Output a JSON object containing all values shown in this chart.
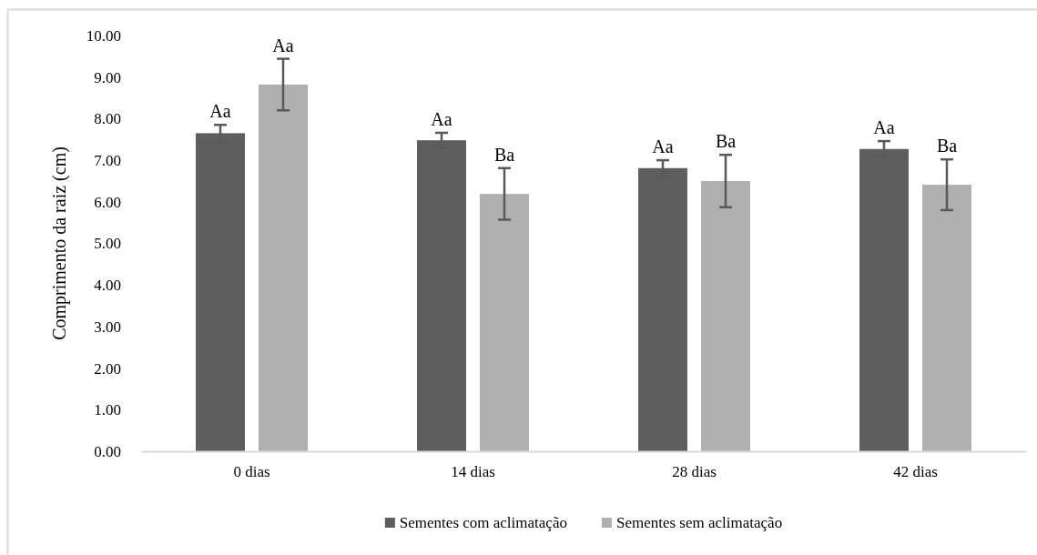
{
  "chart_data": {
    "type": "bar",
    "ylabel": "Comprimento da raiz (cm)",
    "categories": [
      "0 dias",
      "14 dias",
      "28 dias",
      "42 dias"
    ],
    "series": [
      {
        "name": "Sementes com aclimatação",
        "color": "#5e5e5e",
        "values": [
          7.65,
          7.48,
          6.81,
          7.27
        ],
        "errors": [
          0.2,
          0.18,
          0.19,
          0.19
        ],
        "value_labels": [
          "Aa",
          "Aa",
          "Aa",
          "Aa"
        ]
      },
      {
        "name": "Sementes sem aclimatação",
        "color": "#b0b0b0",
        "values": [
          8.82,
          6.19,
          6.5,
          6.41
        ],
        "errors": [
          0.62,
          0.62,
          0.63,
          0.61
        ],
        "value_labels": [
          "Aa",
          "Ba",
          "Ba",
          "Ba"
        ]
      }
    ],
    "ylim": [
      0,
      10
    ],
    "yticks": [
      {
        "value": 0,
        "label": "0.00"
      },
      {
        "value": 1,
        "label": "1.00"
      },
      {
        "value": 2,
        "label": "2.00"
      },
      {
        "value": 3,
        "label": "3.00"
      },
      {
        "value": 4,
        "label": "4.00"
      },
      {
        "value": 5,
        "label": "5.00"
      },
      {
        "value": 6,
        "label": "6.00"
      },
      {
        "value": 7,
        "label": "7.00"
      },
      {
        "value": 8,
        "label": "8.00"
      },
      {
        "value": 9,
        "label": "9.00"
      },
      {
        "value": 10,
        "label": "10.00"
      }
    ],
    "grid": false,
    "legend": "bottom"
  }
}
